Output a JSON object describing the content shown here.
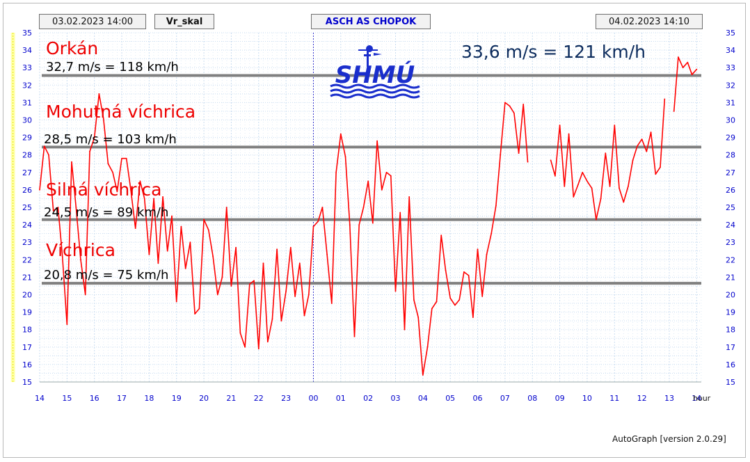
{
  "header": {
    "start_time": "03.02.2023 14:00",
    "variable": "Vr_skal",
    "station": "ASCH AS CHOPOK",
    "end_time": "04.02.2023 14:10"
  },
  "logo_text": "SHMÚ",
  "max_label": "33,6 m/s = 121 km/h",
  "footer": "AutoGraph [version 2.0.29]",
  "colors": {
    "series": "#ff0000",
    "threshold_line": "#808080",
    "axis_text": "#0000cc",
    "category_text": "#ee0000",
    "threshold_text": "#000000",
    "max_text": "#0a2a5c",
    "highlight": "#ffff99",
    "grid": "#c8dcf0"
  },
  "chart_data": {
    "type": "line",
    "title": "",
    "xlabel": "hour",
    "ylabel": "",
    "ylim": [
      15,
      35
    ],
    "yticks": [
      "15",
      "16",
      "17",
      "18",
      "19",
      "20",
      "21",
      "22",
      "23",
      "24",
      "25",
      "26",
      "27",
      "28",
      "29",
      "30",
      "31",
      "32",
      "33",
      "34",
      "35"
    ],
    "xlim": [
      14,
      38.17
    ],
    "xticks": [
      "14",
      "15",
      "16",
      "17",
      "18",
      "19",
      "20",
      "21",
      "22",
      "23",
      "00",
      "01",
      "02",
      "03",
      "04",
      "05",
      "06",
      "07",
      "08",
      "09",
      "10",
      "11",
      "12",
      "13",
      "14"
    ],
    "grid": true,
    "highlight_bands": [
      [
        7.87,
        8.5
      ],
      [
        12.95,
        13.1
      ]
    ],
    "thresholds": [
      {
        "category": "Orkán",
        "label": "32,7 m/s = 118 km/h",
        "value": 32.55
      },
      {
        "category": "Mohutná víchrica",
        "label": "28,5 m/s = 103 km/h",
        "value": 28.45
      },
      {
        "category": "Silná víchrica",
        "label": "24,5 m/s = 89 km/h",
        "value": 24.3
      },
      {
        "category": "Víchrica",
        "label": "20,8 m/s = 75 km/h",
        "value": 20.65
      }
    ],
    "series": [
      {
        "segments": [
          [
            [
              14.0,
              26.0
            ],
            [
              14.17,
              28.5
            ],
            [
              14.33,
              28.0
            ],
            [
              14.5,
              24.8
            ],
            [
              14.67,
              25.0
            ],
            [
              14.83,
              22.2
            ],
            [
              15.0,
              18.3
            ],
            [
              15.17,
              27.6
            ],
            [
              15.33,
              25.0
            ],
            [
              15.5,
              22.0
            ],
            [
              15.67,
              20.0
            ],
            [
              15.83,
              28.2
            ],
            [
              16.0,
              29.0
            ],
            [
              16.17,
              31.5
            ],
            [
              16.33,
              30.1
            ],
            [
              16.5,
              27.5
            ],
            [
              16.67,
              27.0
            ],
            [
              16.83,
              25.9
            ],
            [
              17.0,
              27.8
            ],
            [
              17.17,
              27.8
            ],
            [
              17.33,
              26.0
            ],
            [
              17.5,
              23.8
            ],
            [
              17.67,
              26.5
            ],
            [
              17.83,
              25.5
            ],
            [
              18.0,
              22.3
            ],
            [
              18.17,
              25.5
            ],
            [
              18.33,
              21.8
            ],
            [
              18.5,
              25.6
            ],
            [
              18.67,
              22.5
            ],
            [
              18.83,
              24.5
            ],
            [
              19.0,
              19.6
            ],
            [
              19.17,
              23.9
            ],
            [
              19.33,
              21.5
            ],
            [
              19.5,
              23.0
            ],
            [
              19.67,
              18.9
            ],
            [
              19.83,
              19.2
            ],
            [
              20.0,
              24.3
            ],
            [
              20.17,
              23.7
            ],
            [
              20.33,
              22.2
            ],
            [
              20.5,
              20.0
            ],
            [
              20.67,
              21.0
            ],
            [
              20.83,
              25.0
            ],
            [
              21.0,
              20.5
            ],
            [
              21.17,
              22.7
            ],
            [
              21.33,
              17.8
            ],
            [
              21.5,
              17.0
            ],
            [
              21.67,
              20.6
            ],
            [
              21.83,
              20.8
            ],
            [
              22.0,
              16.9
            ],
            [
              22.17,
              21.8
            ],
            [
              22.33,
              17.3
            ],
            [
              22.5,
              18.6
            ],
            [
              22.67,
              22.6
            ],
            [
              22.83,
              18.5
            ],
            [
              23.0,
              20.2
            ],
            [
              23.17,
              22.7
            ],
            [
              23.33,
              19.9
            ],
            [
              23.5,
              21.8
            ],
            [
              23.67,
              18.8
            ],
            [
              23.83,
              20.0
            ],
            [
              24.0,
              23.9
            ],
            [
              24.17,
              24.2
            ],
            [
              24.33,
              25.0
            ],
            [
              24.5,
              22.3
            ],
            [
              24.67,
              19.5
            ],
            [
              24.83,
              27.0
            ],
            [
              25.0,
              29.2
            ],
            [
              25.17,
              27.9
            ],
            [
              25.33,
              24.0
            ],
            [
              25.5,
              17.6
            ],
            [
              25.67,
              24.0
            ],
            [
              25.83,
              25.0
            ],
            [
              26.0,
              26.5
            ],
            [
              26.17,
              24.1
            ],
            [
              26.33,
              28.8
            ],
            [
              26.5,
              26.0
            ],
            [
              26.67,
              27.0
            ],
            [
              26.83,
              26.8
            ],
            [
              27.0,
              20.2
            ],
            [
              27.17,
              24.7
            ],
            [
              27.33,
              18.0
            ],
            [
              27.5,
              25.6
            ],
            [
              27.67,
              19.7
            ],
            [
              27.83,
              18.7
            ],
            [
              28.0,
              15.4
            ],
            [
              28.17,
              17.0
            ],
            [
              28.33,
              19.2
            ],
            [
              28.5,
              19.6
            ],
            [
              28.67,
              23.4
            ],
            [
              28.83,
              21.4
            ],
            [
              29.0,
              19.8
            ],
            [
              29.17,
              19.4
            ],
            [
              29.33,
              19.7
            ],
            [
              29.5,
              21.3
            ],
            [
              29.67,
              21.1
            ],
            [
              29.83,
              18.7
            ],
            [
              30.0,
              22.6
            ],
            [
              30.17,
              19.9
            ],
            [
              30.33,
              22.3
            ],
            [
              30.5,
              23.5
            ],
            [
              30.67,
              25.1
            ],
            [
              30.83,
              28.0
            ],
            [
              31.0,
              31.0
            ],
            [
              31.17,
              30.8
            ],
            [
              31.33,
              30.4
            ],
            [
              31.5,
              28.1
            ],
            [
              31.67,
              30.9
            ],
            [
              31.83,
              27.6
            ]
          ],
          [
            [
              32.67,
              27.7
            ],
            [
              32.83,
              26.8
            ],
            [
              33.0,
              29.7
            ],
            [
              33.17,
              26.2
            ],
            [
              33.33,
              29.2
            ],
            [
              33.5,
              25.6
            ],
            [
              33.67,
              26.3
            ],
            [
              33.83,
              27.0
            ],
            [
              34.0,
              26.5
            ],
            [
              34.17,
              26.1
            ],
            [
              34.33,
              24.3
            ],
            [
              34.5,
              25.5
            ],
            [
              34.67,
              28.1
            ],
            [
              34.83,
              26.2
            ],
            [
              35.0,
              29.7
            ],
            [
              35.17,
              26.1
            ],
            [
              35.33,
              25.3
            ],
            [
              35.5,
              26.2
            ],
            [
              35.67,
              27.7
            ],
            [
              35.83,
              28.5
            ],
            [
              36.0,
              28.9
            ],
            [
              36.17,
              28.2
            ],
            [
              36.33,
              29.3
            ],
            [
              36.5,
              26.9
            ],
            [
              36.67,
              27.3
            ],
            [
              36.83,
              31.2
            ]
          ],
          [
            [
              37.17,
              30.5
            ],
            [
              37.33,
              33.6
            ],
            [
              37.5,
              33.0
            ],
            [
              37.67,
              33.3
            ],
            [
              37.83,
              32.6
            ],
            [
              38.0,
              32.9
            ]
          ]
        ]
      }
    ]
  }
}
